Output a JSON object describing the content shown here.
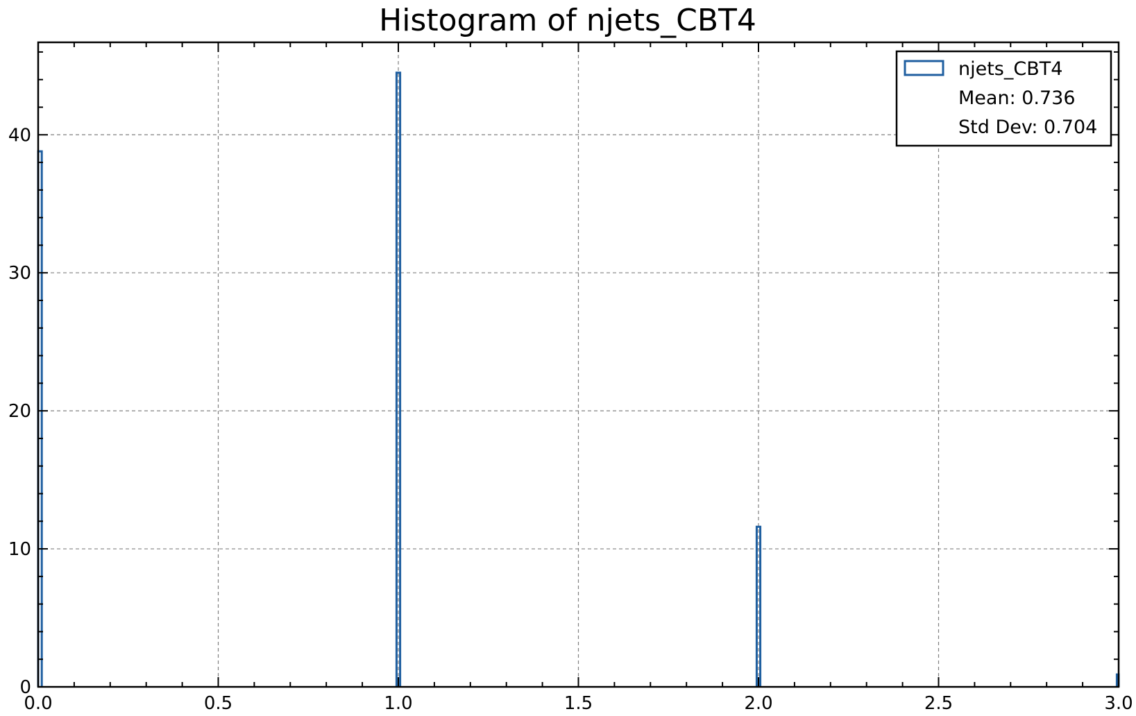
{
  "chart_data": {
    "type": "bar",
    "subtype": "step-histogram",
    "title": "Histogram of njets_CBT4",
    "xlabel": "",
    "ylabel": "",
    "xlim": [
      0.0,
      3.0
    ],
    "ylim": [
      0,
      46.7
    ],
    "grid": true,
    "xticks": [
      0.0,
      0.5,
      1.0,
      1.5,
      2.0,
      2.5,
      3.0
    ],
    "xtick_labels": [
      "0.0",
      "0.5",
      "1.0",
      "1.5",
      "2.0",
      "2.5",
      "3.0"
    ],
    "yticks": [
      0,
      10,
      20,
      30,
      40
    ],
    "ytick_labels": [
      "0",
      "10",
      "20",
      "30",
      "40"
    ],
    "bins": [
      {
        "x0": 0.0,
        "x1": 0.01,
        "count": 38.8
      },
      {
        "x0": 0.995,
        "x1": 1.005,
        "count": 44.5
      },
      {
        "x0": 1.995,
        "x1": 2.005,
        "count": 11.6
      },
      {
        "x0": 2.995,
        "x1": 3.0,
        "count": 0.9
      }
    ],
    "series": [
      {
        "name": "njets_CBT4",
        "color": "#1f5fa0"
      }
    ],
    "legend": {
      "placement": "top-right",
      "series_label": "njets_CBT4",
      "mean_text": "Mean: 0.736",
      "std_text": "Std Dev: 0.704"
    }
  }
}
